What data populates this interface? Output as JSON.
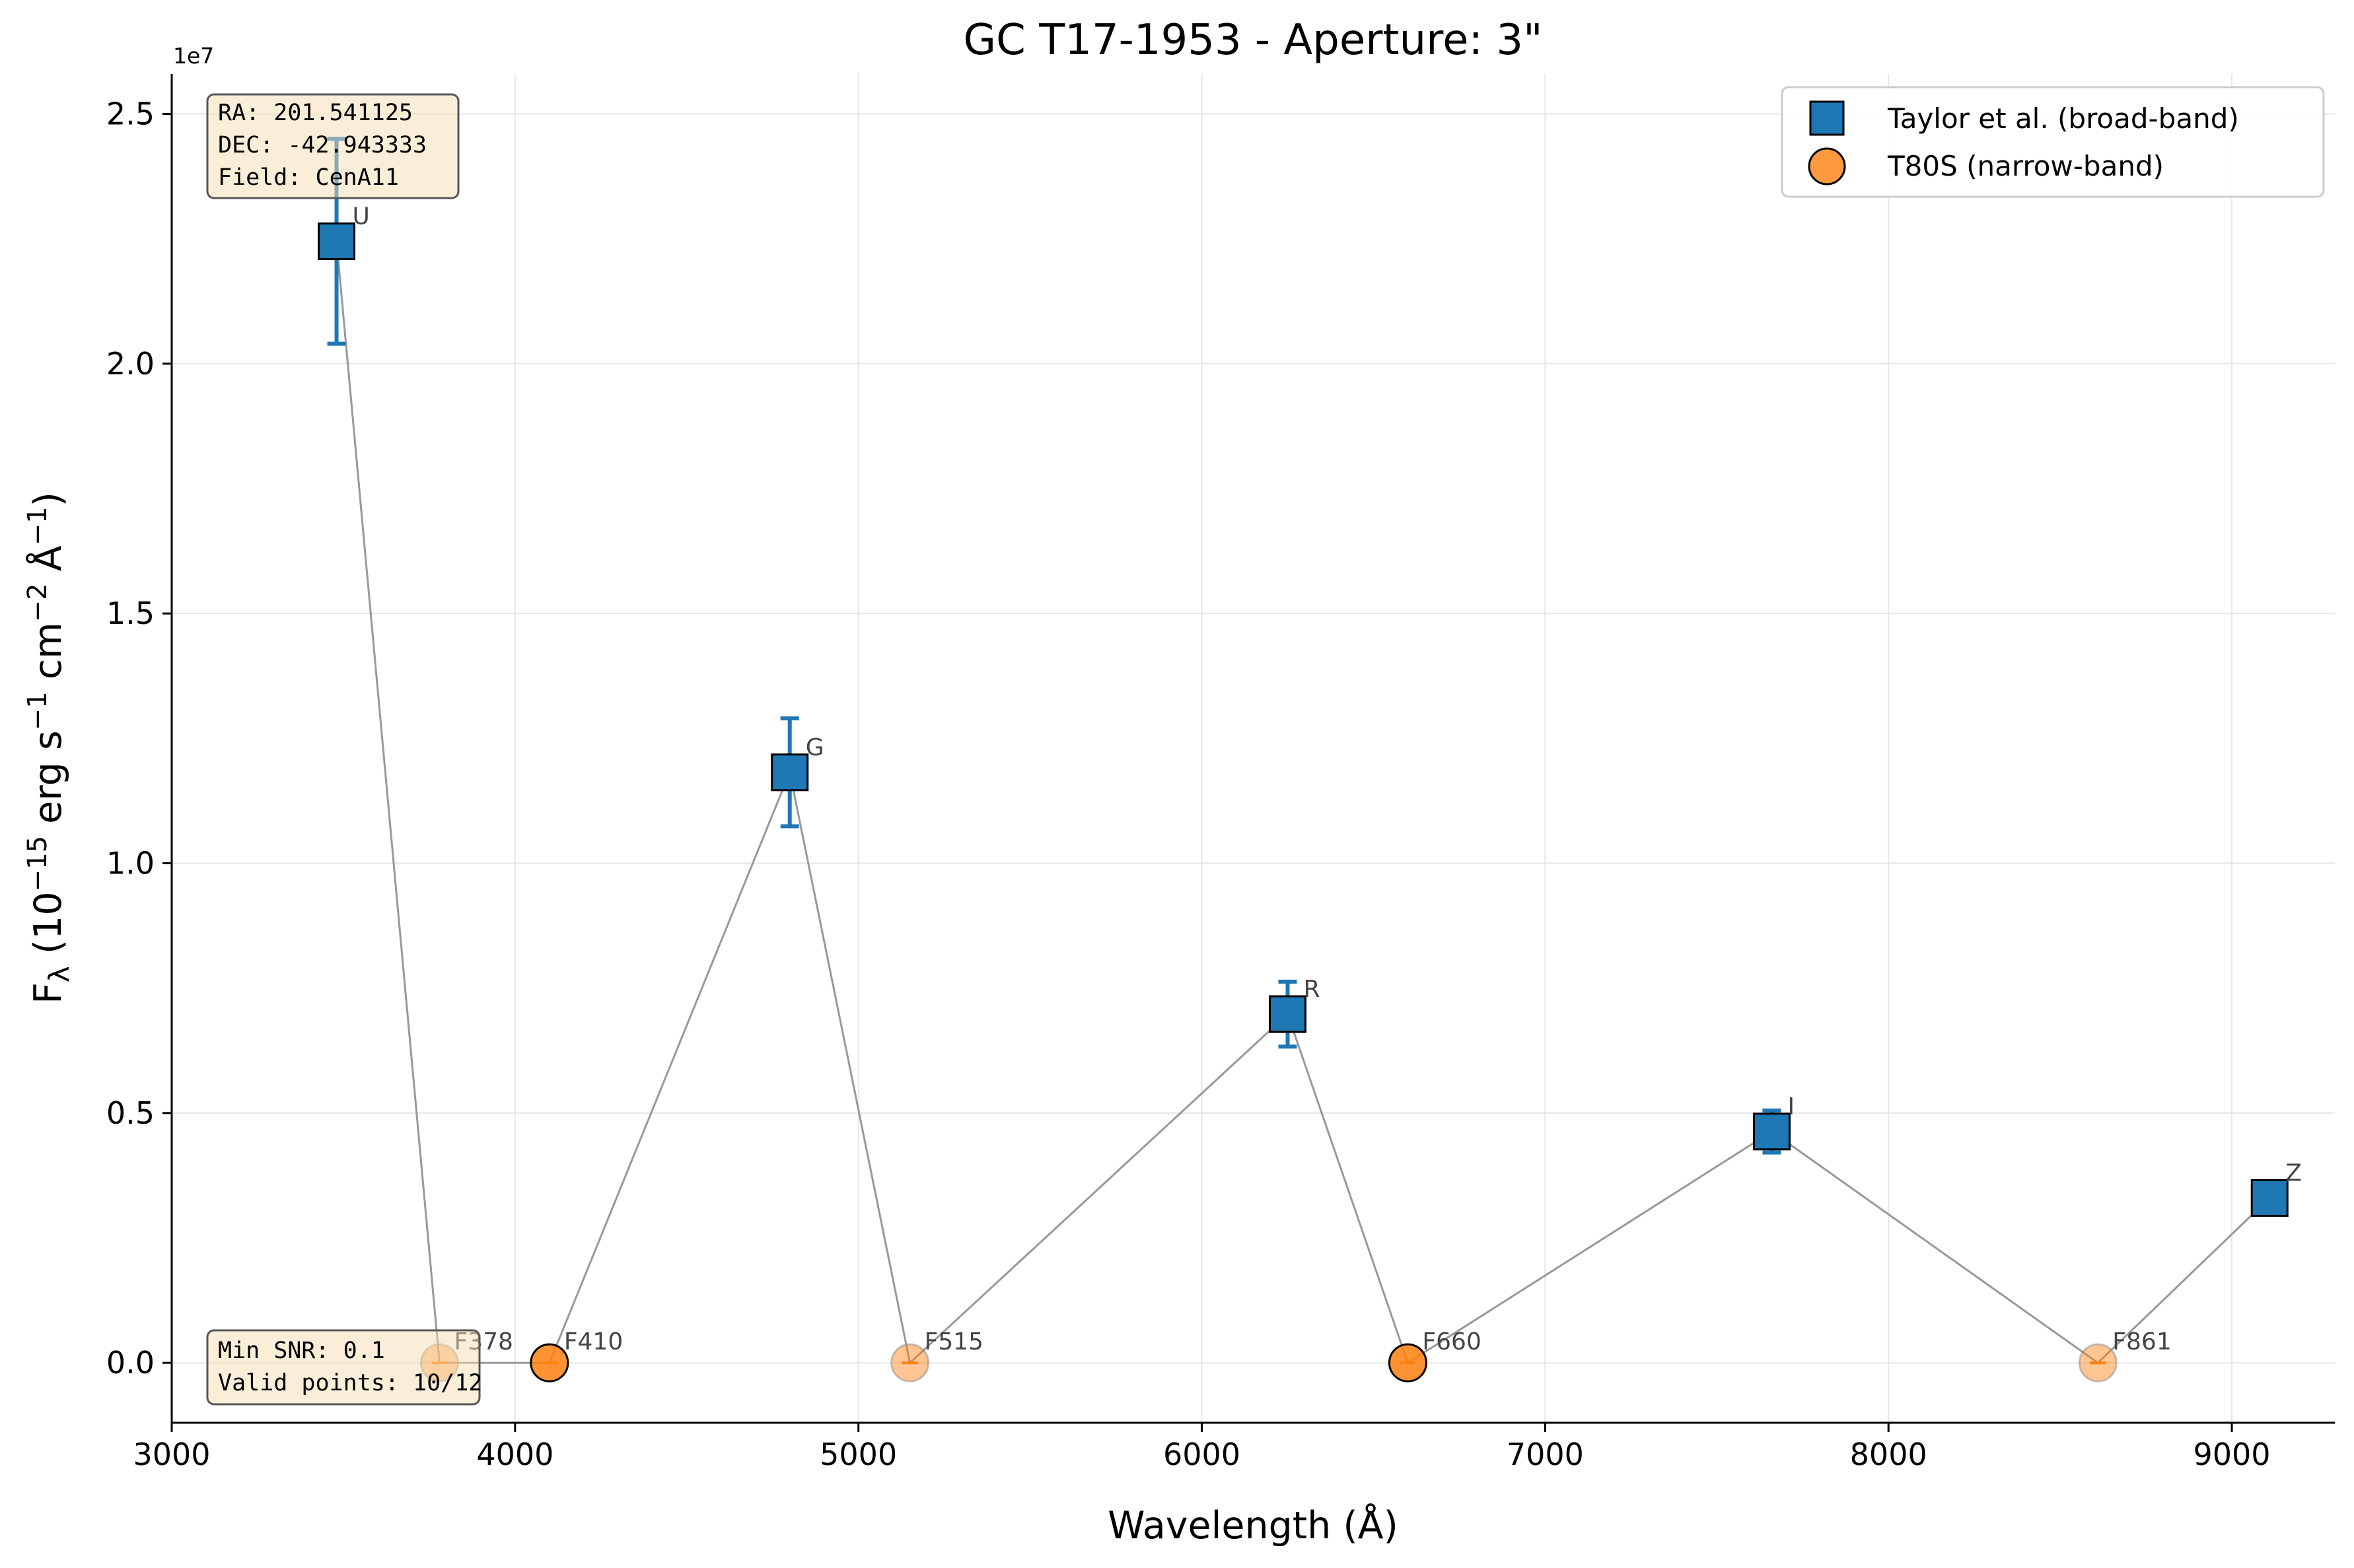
{
  "chart_data": {
    "type": "scatter",
    "title": "GC T17-1953 - Aperture: 3\"",
    "xlabel": "Wavelength (Å)",
    "ylabel_main": "F",
    "ylabel_sub": "λ",
    "ylabel_rest": " (10",
    "ylabel_exp1": "−15",
    "ylabel_mid1": " erg s",
    "ylabel_exp2": "−1",
    "ylabel_mid2": " cm",
    "ylabel_exp3": "−2",
    "ylabel_mid3": " Å",
    "ylabel_exp4": "−1",
    "ylabel_end": ")",
    "y_offset_label": "1e7",
    "xlim": [
      3000,
      9300
    ],
    "ylim": [
      -1200000,
      25800000
    ],
    "xticks": [
      3000,
      4000,
      5000,
      6000,
      7000,
      8000,
      9000
    ],
    "yticks": [
      0,
      5000000,
      10000000,
      15000000,
      20000000,
      25000000
    ],
    "ytick_labels": [
      "0.0",
      "0.5",
      "1.0",
      "1.5",
      "2.0",
      "2.5"
    ],
    "grid": true,
    "legend_position": "top-right",
    "series": [
      {
        "name": "Taylor et al. (broad-band)",
        "marker": "square",
        "color": "#1f77b4",
        "points": [
          {
            "label": "U",
            "x": 3480,
            "y": 22450000,
            "yerr": 2050000
          },
          {
            "label": "G",
            "x": 4800,
            "y": 11820000,
            "yerr": 1080000
          },
          {
            "label": "R",
            "x": 6250,
            "y": 6980000,
            "yerr": 650000
          },
          {
            "label": "I",
            "x": 7660,
            "y": 4630000,
            "yerr": 420000
          },
          {
            "label": "Z",
            "x": 9110,
            "y": 3300000,
            "yerr": 0
          }
        ]
      },
      {
        "name": "T80S (narrow-band)",
        "marker": "circle",
        "color": "#ff7f0e",
        "points": [
          {
            "label": "F378",
            "x": 3780,
            "y": 0,
            "faded": true
          },
          {
            "label": "F410",
            "x": 4100,
            "y": 0,
            "faded": false
          },
          {
            "label": "F515",
            "x": 5150,
            "y": 0,
            "faded": true
          },
          {
            "label": "F660",
            "x": 6600,
            "y": 0,
            "faded": false
          },
          {
            "label": "F861",
            "x": 8610,
            "y": 0,
            "faded": true
          }
        ]
      }
    ],
    "connecting_line_order": [
      "U",
      "F378",
      "F410",
      "G",
      "F515",
      "R",
      "F660",
      "I",
      "F861",
      "Z"
    ]
  },
  "info_box_top": {
    "ra": "RA: 201.541125",
    "dec": "DEC: -42.943333",
    "field": "Field: CenA11"
  },
  "info_box_bottom": {
    "min_snr": "Min SNR: 0.1",
    "valid_points": "Valid points: 10/12"
  }
}
